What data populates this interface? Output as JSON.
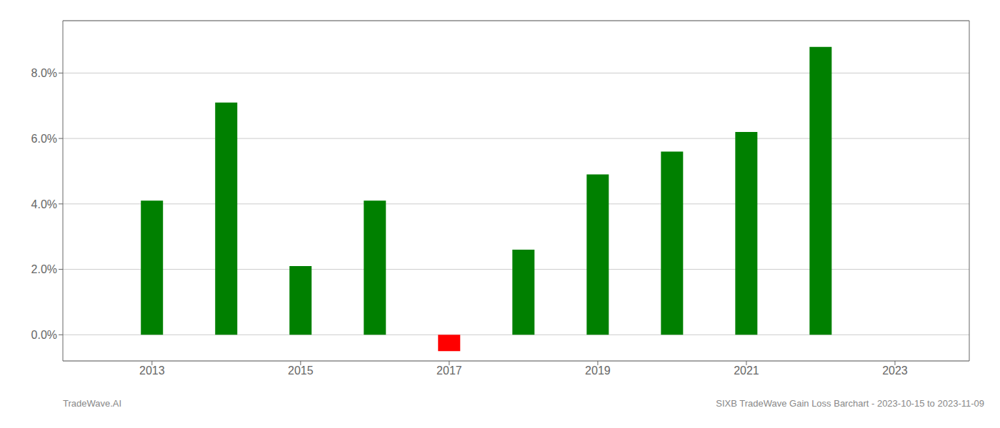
{
  "chart_data": {
    "type": "bar",
    "x": [
      2013,
      2014,
      2015,
      2016,
      2017,
      2018,
      2019,
      2020,
      2021,
      2022
    ],
    "values": [
      0.041,
      0.071,
      0.021,
      0.041,
      -0.005,
      0.026,
      0.049,
      0.056,
      0.062,
      0.088
    ],
    "colors": [
      "#008000",
      "#008000",
      "#008000",
      "#008000",
      "#ff0000",
      "#008000",
      "#008000",
      "#008000",
      "#008000",
      "#008000"
    ],
    "xlim": [
      2011.8,
      2024.0
    ],
    "xticks": [
      2013,
      2015,
      2017,
      2019,
      2021,
      2023
    ],
    "ylim": [
      -0.008,
      0.096
    ],
    "yticks": [
      {
        "value": 0.0,
        "label": "0.0%"
      },
      {
        "value": 0.02,
        "label": "2.0%"
      },
      {
        "value": 0.04,
        "label": "4.0%"
      },
      {
        "value": 0.06,
        "label": "6.0%"
      },
      {
        "value": 0.08,
        "label": "8.0%"
      }
    ],
    "grid": true,
    "annotations": [
      "TradeWave.AI",
      "SIXB TradeWave Gain Loss Barchart - 2023-10-15 to 2023-11-09"
    ]
  }
}
